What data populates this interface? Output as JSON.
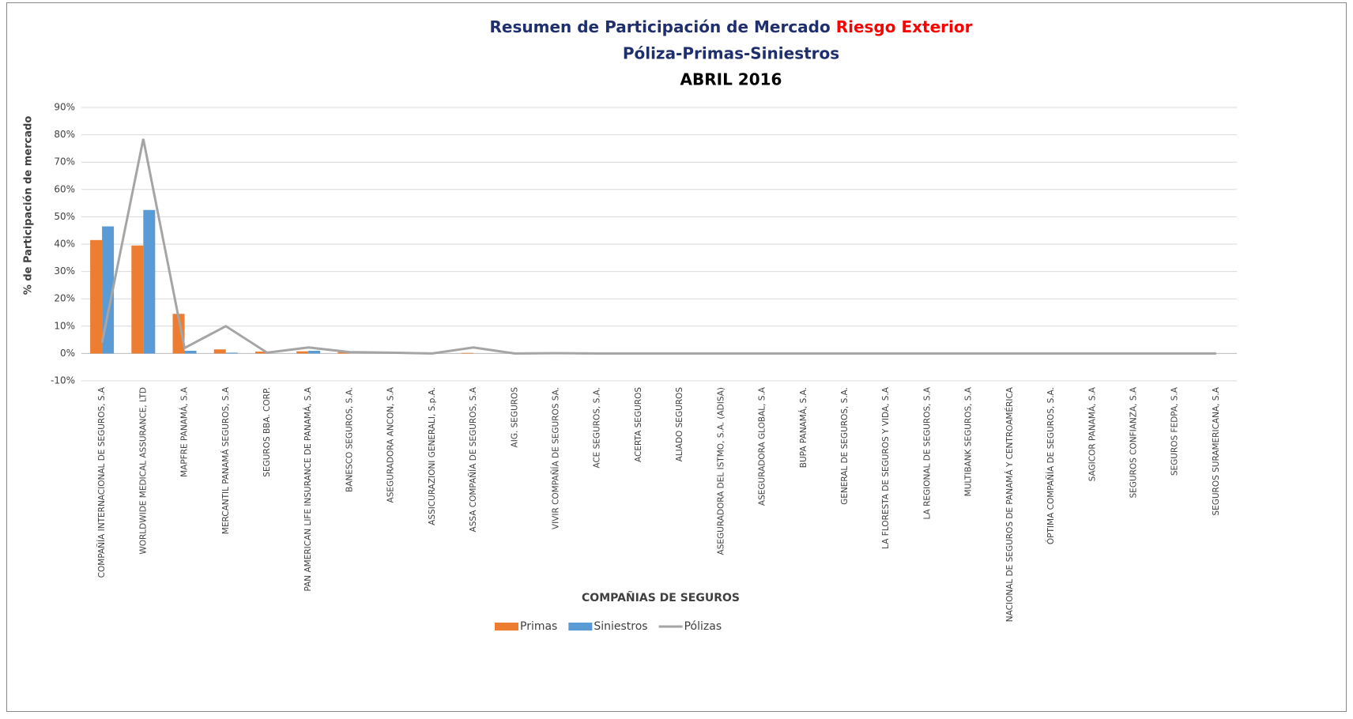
{
  "chart_data": {
    "type": "bar_line",
    "title": "Resumen de Participación de Mercado",
    "title_highlight": "Riesgo Exterior",
    "subtitle": "Póliza-Primas-Siniestros",
    "period": "ABRIL 2016",
    "y_label": "% de Participación de mercado",
    "x_label": "COMPAÑIAS DE SEGUROS",
    "categories": [
      "COMPAÑÍA INTERNACIONAL DE SEGUROS, S.A",
      "WORLDWIDE MEDICAL ASSURANCE, LTD",
      "MAPFRE PANAMÁ, S.A",
      "MERCANTIL PANAMÁ SEGUROS, S.A",
      "SEGUROS BBA. CORP.",
      "PAN AMERICAN LIFE INSURANCE DE PANAMÁ, S.A",
      "BANESCO SEGUROS, S.A.",
      "ASEGURADORA ANCON, S.A",
      "ASSICURAZIONI GENERALI, S.p.A.",
      "ASSA COMPAÑÍA DE SEGUROS, S.A",
      "AIG. SEGUROS",
      "VIVIR COMPAÑÍA DE SEGUROS SA.",
      "ACE SEGUROS, S.A.",
      "ACERTA SEGUROS",
      "ALIADO SEGUROS",
      "ASEGURADORA DEL ISTMO, S.A. (ADISA)",
      "ASEGURADORA GLOBAL, S.A",
      "BUPA PANAMÁ, S.A.",
      "GENERAL DE SEGUROS, S.A.",
      "LA FLORESTA DE SEGUROS Y VIDA, S.A",
      "LA REGIONAL DE SEGUROS, S.A",
      "MULTIBANK SEGUROS, S.A",
      "NACIONAL DE SEGUROS DE PANAMÁ Y CENTROAMÉRICA",
      "ÓPTIMA COMPAÑÍA DE SEGUROS, S.A.",
      "SAGICOR PANAMÁ, S.A",
      "SEGUROS CONFIANZA, S.A",
      "SEGUROS FEDPA, S.A",
      "SEGUROS SURAMERICANA, S.A"
    ],
    "series": [
      {
        "name": "Primas",
        "color": "#ed7d31",
        "kind": "bar",
        "values": [
          41.5,
          39.5,
          14.5,
          1.5,
          0.7,
          0.8,
          0.5,
          0.2,
          0,
          0.2,
          0,
          0,
          0,
          0,
          0,
          0,
          0,
          0,
          0,
          0,
          0,
          0,
          0,
          0,
          0,
          0,
          0,
          0
        ]
      },
      {
        "name": "Siniestros",
        "color": "#5b9bd5",
        "kind": "bar",
        "values": [
          46.5,
          52.5,
          1,
          0.3,
          0,
          1,
          0,
          0,
          0,
          0,
          0,
          0,
          0,
          0,
          0,
          0,
          0,
          0,
          0,
          0,
          0,
          0,
          0,
          0,
          0,
          0,
          0,
          0
        ]
      },
      {
        "name": "Pólizas",
        "color": "#a5a5a5",
        "kind": "line",
        "values": [
          4,
          78.5,
          2,
          10,
          0.3,
          2.2,
          0.5,
          0.3,
          0,
          2.2,
          0,
          0.1,
          0,
          0,
          0,
          0,
          0,
          0,
          0,
          0,
          0,
          0,
          0,
          0,
          0,
          0,
          0,
          0
        ]
      }
    ],
    "ylim": [
      -10,
      90
    ],
    "yticks": [
      {
        "value": -10,
        "label": "-10%"
      },
      {
        "value": 0,
        "label": "0%"
      },
      {
        "value": 10,
        "label": "10%"
      },
      {
        "value": 20,
        "label": "20%"
      },
      {
        "value": 30,
        "label": "30%"
      },
      {
        "value": 40,
        "label": "40%"
      },
      {
        "value": 50,
        "label": "50%"
      },
      {
        "value": 60,
        "label": "60%"
      },
      {
        "value": 70,
        "label": "70%"
      },
      {
        "value": 80,
        "label": "80%"
      },
      {
        "value": 90,
        "label": "90%"
      }
    ],
    "grid": true,
    "legend": "bottom"
  }
}
